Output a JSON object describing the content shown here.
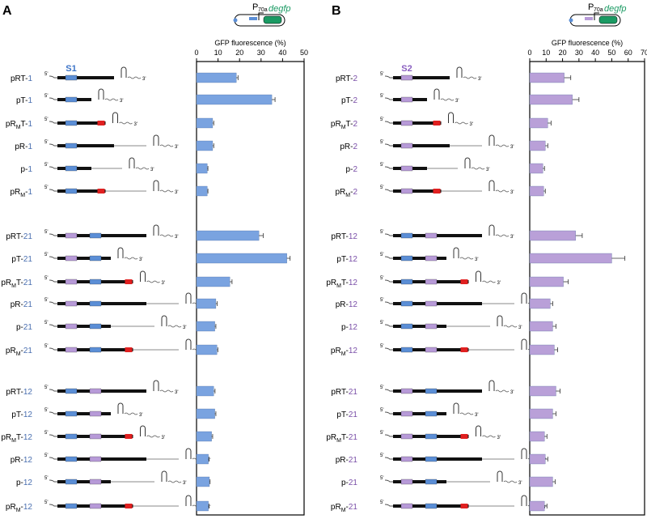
{
  "panels": [
    {
      "letter": "A",
      "sensor": "S1",
      "promoter": "P",
      "promoter_sub": "70a",
      "reporter": "degfp",
      "prime5": "5'",
      "prime3": "3'",
      "rows": [
        {
          "prefix": "pRT-",
          "suffix": "1",
          "has_m": false
        },
        {
          "prefix": "pT-",
          "suffix": "1",
          "has_m": false
        },
        {
          "prefix": "pR",
          "sub": "M",
          "post": "T-",
          "suffix": "1",
          "has_m": true
        },
        {
          "prefix": "pR-",
          "suffix": "1",
          "has_m": false
        },
        {
          "prefix": "p-",
          "suffix": "1",
          "has_m": false
        },
        {
          "prefix": "pR",
          "sub": "M",
          "post": "-",
          "suffix": "1",
          "has_m": true
        },
        {
          "prefix": "pRT-",
          "suffix": "21",
          "has_m": false
        },
        {
          "prefix": "pT-",
          "suffix": "21",
          "has_m": false
        },
        {
          "prefix": "pR",
          "sub": "M",
          "post": "T-",
          "suffix": "21",
          "has_m": true
        },
        {
          "prefix": "pR-",
          "suffix": "21",
          "has_m": false
        },
        {
          "prefix": "p-",
          "suffix": "21",
          "has_m": false
        },
        {
          "prefix": "pR",
          "sub": "M",
          "post": "-",
          "suffix": "21",
          "has_m": true
        },
        {
          "prefix": "pRT-",
          "suffix": "12",
          "has_m": false
        },
        {
          "prefix": "pT-",
          "suffix": "12",
          "has_m": false
        },
        {
          "prefix": "pR",
          "sub": "M",
          "post": "T-",
          "suffix": "12",
          "has_m": true
        },
        {
          "prefix": "pR-",
          "suffix": "12",
          "has_m": false
        },
        {
          "prefix": "p-",
          "suffix": "12",
          "has_m": false
        },
        {
          "prefix": "pR",
          "sub": "M",
          "post": "-",
          "suffix": "12",
          "has_m": true
        }
      ]
    },
    {
      "letter": "B",
      "sensor": "S2",
      "promoter": "P",
      "promoter_sub": "70a",
      "reporter": "degfp",
      "prime5": "5'",
      "prime3": "3'",
      "rows": [
        {
          "prefix": "pRT-",
          "suffix": "2",
          "has_m": false
        },
        {
          "prefix": "pT-",
          "suffix": "2",
          "has_m": false
        },
        {
          "prefix": "pR",
          "sub": "M",
          "post": "T-",
          "suffix": "2",
          "has_m": true
        },
        {
          "prefix": "pR-",
          "suffix": "2",
          "has_m": false
        },
        {
          "prefix": "p-",
          "suffix": "2",
          "has_m": false
        },
        {
          "prefix": "pR",
          "sub": "M",
          "post": "-",
          "suffix": "2",
          "has_m": true
        },
        {
          "prefix": "pRT-",
          "suffix": "12",
          "has_m": false
        },
        {
          "prefix": "pT-",
          "suffix": "12",
          "has_m": false
        },
        {
          "prefix": "pR",
          "sub": "M",
          "post": "T-",
          "suffix": "12",
          "has_m": true
        },
        {
          "prefix": "pR-",
          "suffix": "12",
          "has_m": false
        },
        {
          "prefix": "p-",
          "suffix": "12",
          "has_m": false
        },
        {
          "prefix": "pR",
          "sub": "M",
          "post": "-",
          "suffix": "12",
          "has_m": true
        },
        {
          "prefix": "pRT-",
          "suffix": "21",
          "has_m": false
        },
        {
          "prefix": "pT-",
          "suffix": "21",
          "has_m": false
        },
        {
          "prefix": "pR",
          "sub": "M",
          "post": "T-",
          "suffix": "21",
          "has_m": true
        },
        {
          "prefix": "pR-",
          "suffix": "21",
          "has_m": false
        },
        {
          "prefix": "p-",
          "suffix": "21",
          "has_m": false
        },
        {
          "prefix": "pR",
          "sub": "M",
          "post": "-",
          "suffix": "21",
          "has_m": true
        }
      ]
    }
  ],
  "colors": {
    "s1": "#5b8ed6",
    "s2": "#b79ad8",
    "mut": "#e02020",
    "body": "#111111",
    "line": "#888888",
    "bar_a": "#7aa3e0",
    "bar_b": "#b9a0d8",
    "gfp": "#1a9a63"
  },
  "chart_data": [
    {
      "type": "bar",
      "orientation": "horizontal",
      "title": "GFP fluorescence (%)",
      "xlabel": "GFP fluorescence (%)",
      "xlim": [
        0,
        50
      ],
      "ticks": [
        0,
        10,
        20,
        30,
        40,
        50
      ],
      "categories": [
        "pRT-1",
        "pT-1",
        "pRMT-1",
        "pR-1",
        "p-1",
        "pRM-1",
        "pRT-21",
        "pT-21",
        "pRMT-21",
        "pR-21",
        "p-21",
        "pRM-21",
        "pRT-12",
        "pT-12",
        "pRMT-12",
        "pR-12",
        "p-12",
        "pRM-12"
      ],
      "values": [
        18.5,
        35,
        7.5,
        7.5,
        5,
        5,
        29,
        42,
        15.5,
        9,
        8.5,
        9.5,
        8,
        8.5,
        7,
        5.5,
        6,
        5.5
      ],
      "errors": [
        0.8,
        1.5,
        0.5,
        0.5,
        0.3,
        0.3,
        2,
        1.5,
        1,
        0.6,
        0.5,
        0.4,
        0.6,
        0.5,
        0.5,
        0.3,
        0.3,
        0.3
      ]
    },
    {
      "type": "bar",
      "orientation": "horizontal",
      "title": "GFP fluorescence (%)",
      "xlabel": "GFP fluorescence (%)",
      "xlim": [
        0,
        70
      ],
      "ticks": [
        0,
        10,
        20,
        30,
        40,
        50,
        60,
        70
      ],
      "categories": [
        "pRT-2",
        "pT-2",
        "pRMT-2",
        "pR-2",
        "p-2",
        "pRM-2",
        "pRT-12",
        "pT-12",
        "pRMT-12",
        "pR-12",
        "p-12",
        "pRM-12",
        "pRT-21",
        "pT-21",
        "pRMT-21",
        "pR-21",
        "p-21",
        "pRM-21"
      ],
      "values": [
        21,
        26,
        11,
        9.5,
        8,
        8.5,
        28,
        50,
        20.5,
        12.5,
        14,
        15,
        16,
        14,
        9,
        9.5,
        14,
        9
      ],
      "errors": [
        4,
        4,
        2,
        1.5,
        1,
        1,
        4,
        8,
        3,
        1.5,
        2,
        2,
        2.5,
        2,
        1.5,
        1.5,
        1.5,
        1.5
      ]
    }
  ]
}
